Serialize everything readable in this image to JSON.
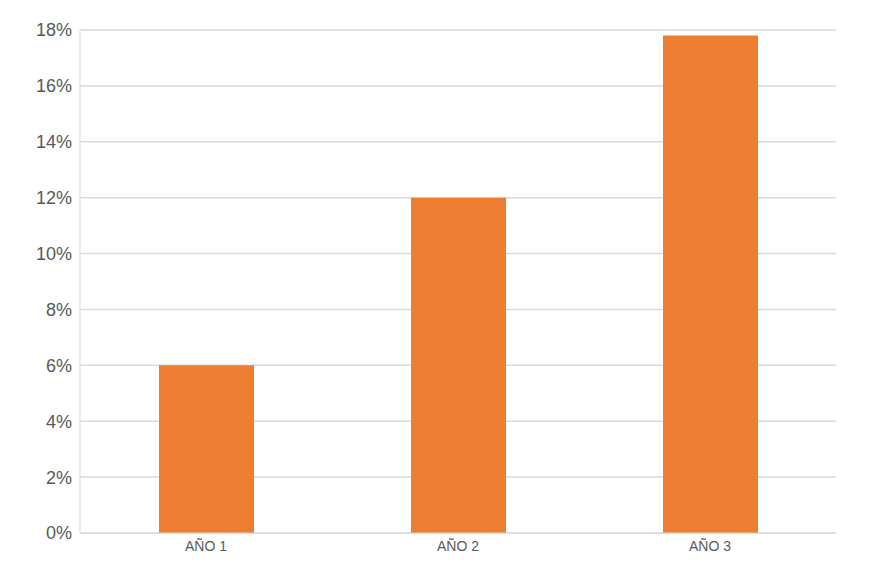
{
  "chart_data": {
    "type": "bar",
    "categories": [
      "AÑO 1",
      "AÑO 2",
      "AÑO 3"
    ],
    "values": [
      6,
      12,
      17.8
    ],
    "color": "#ED7D31",
    "ylim": [
      0,
      18
    ],
    "yticks": [
      {
        "value": 0,
        "label": "0%"
      },
      {
        "value": 2,
        "label": "2%"
      },
      {
        "value": 4,
        "label": "4%"
      },
      {
        "value": 6,
        "label": "6%"
      },
      {
        "value": 8,
        "label": "8%"
      },
      {
        "value": 10,
        "label": "10%"
      },
      {
        "value": 12,
        "label": "12%"
      },
      {
        "value": 14,
        "label": "14%"
      },
      {
        "value": 16,
        "label": "16%"
      },
      {
        "value": 18,
        "label": "18%"
      }
    ],
    "grid": true
  }
}
